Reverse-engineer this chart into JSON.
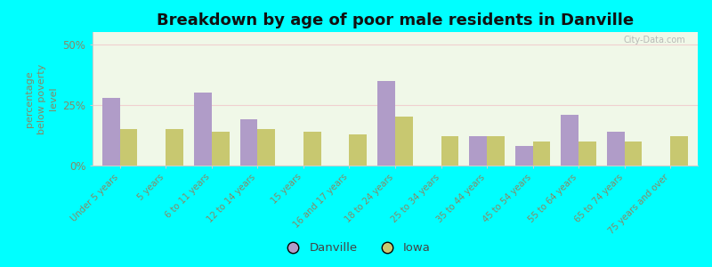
{
  "title": "Breakdown by age of poor male residents in Danville",
  "categories": [
    "Under 5 years",
    "5 years",
    "6 to 11 years",
    "12 to 14 years",
    "15 years",
    "16 and 17 years",
    "18 to 24 years",
    "25 to 34 years",
    "35 to 44 years",
    "45 to 54 years",
    "55 to 64 years",
    "65 to 74 years",
    "75 years and over"
  ],
  "danville": [
    28,
    0,
    30,
    19,
    0,
    0,
    35,
    0,
    12,
    8,
    21,
    14,
    0
  ],
  "iowa": [
    15,
    15,
    14,
    15,
    14,
    13,
    20,
    12,
    12,
    10,
    10,
    10,
    12
  ],
  "danville_color": "#b09cc8",
  "iowa_color": "#c8c870",
  "background_color": "#00ffff",
  "plot_bg": "#f0f8e8",
  "ylabel": "percentage\nbelow poverty\nlevel",
  "ylim": [
    0,
    55
  ],
  "yticks": [
    0,
    25,
    50
  ],
  "ytick_labels": [
    "0%",
    "25%",
    "50%"
  ],
  "title_fontsize": 13,
  "tick_color": "#888866",
  "bar_width": 0.38,
  "legend_labels": [
    "Danville",
    "Iowa"
  ],
  "watermark": "City-Data.com"
}
